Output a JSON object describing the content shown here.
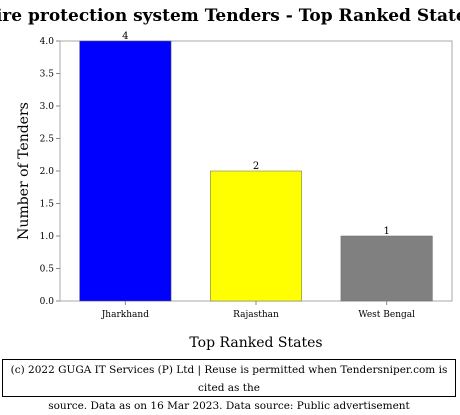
{
  "chart_data": {
    "type": "bar",
    "title": "Fire protection system Tenders - Top Ranked States",
    "xlabel": "Top Ranked States",
    "ylabel": "Number of Tenders",
    "categories": [
      "Jharkhand",
      "Rajasthan",
      "West Bengal"
    ],
    "values": [
      4,
      2,
      1
    ],
    "data_labels": [
      "4",
      "2",
      "1"
    ],
    "colors": [
      "#0000ff",
      "#ffff00",
      "#808080"
    ],
    "ylim": [
      0,
      4
    ],
    "yticks": [
      "0.0",
      "0.5",
      "1.0",
      "1.5",
      "2.0",
      "2.5",
      "3.0",
      "3.5",
      "4.0"
    ],
    "grid": false,
    "legend": "none"
  },
  "footer": {
    "line1": "(c) 2022 GUGA IT Services (P) Ltd | Reuse is permitted when Tendersniper.com is cited as the",
    "line2": "source. Data as on 16 Mar 2023. Data source: Public advertisement"
  }
}
